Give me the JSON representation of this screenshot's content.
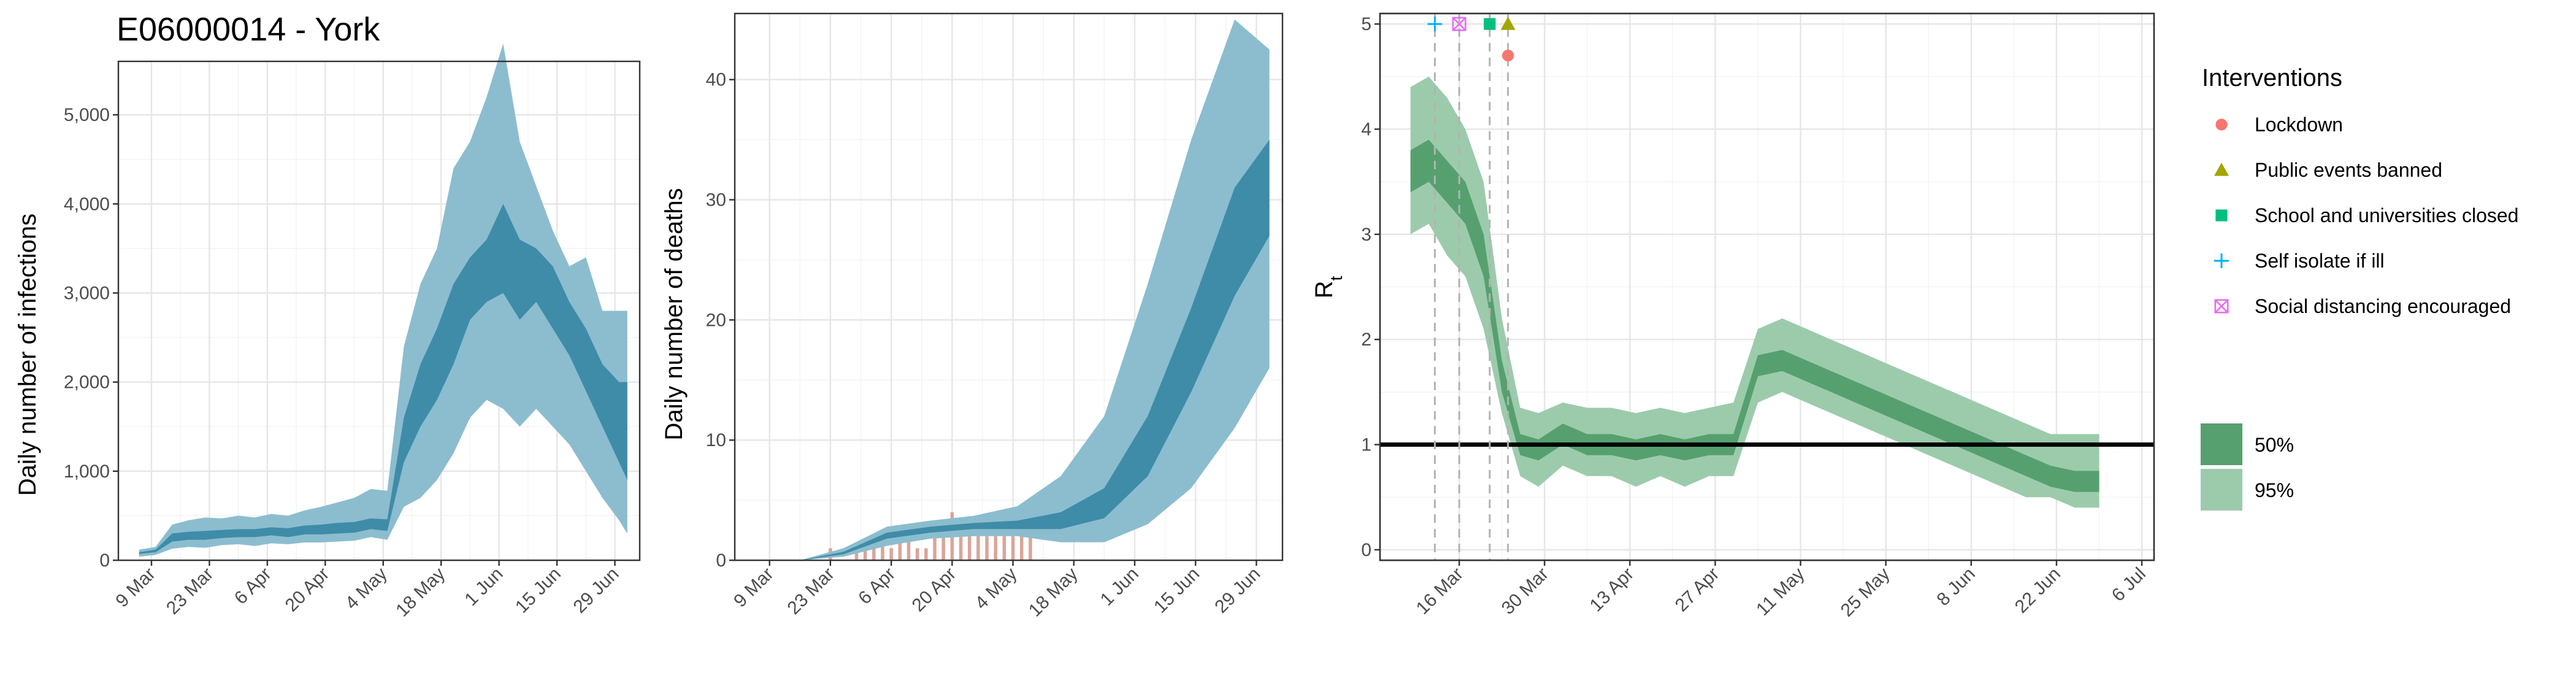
{
  "colors": {
    "infection_95": "#8bbdcf",
    "infection_50": "#3f8ca8",
    "death_bar": "#d9a59a",
    "rt_95": "#9ccbab",
    "rt_50": "#56a06f",
    "lockdown": "#F8766D",
    "events": "#A3A500",
    "schools": "#00BF7D",
    "self_isolate": "#00B0F6",
    "distancing": "#E76BF3"
  },
  "chart_data": [
    {
      "type": "area",
      "title": "E06000014 - York",
      "xlabel": "",
      "ylabel": "Daily number of infections",
      "x_ticks": [
        "9 Mar",
        "23 Mar",
        "6 Apr",
        "20 Apr",
        "4 May",
        "18 May",
        "1 Jun",
        "15 Jun",
        "29 Jun"
      ],
      "y_ticks": [
        "0",
        "1,000",
        "2,000",
        "3,000",
        "4,000",
        "5,000"
      ],
      "ylim": [
        0,
        5600
      ],
      "grid": true,
      "x": [
        "2020-03-06",
        "2020-03-10",
        "2020-03-14",
        "2020-03-18",
        "2020-03-22",
        "2020-03-26",
        "2020-03-30",
        "2020-04-03",
        "2020-04-07",
        "2020-04-11",
        "2020-04-15",
        "2020-04-19",
        "2020-04-23",
        "2020-04-27",
        "2020-05-01",
        "2020-05-05",
        "2020-05-09",
        "2020-05-13",
        "2020-05-17",
        "2020-05-21",
        "2020-05-25",
        "2020-05-29",
        "2020-06-02",
        "2020-06-06",
        "2020-06-10",
        "2020-06-14",
        "2020-06-18",
        "2020-06-22",
        "2020-06-26",
        "2020-06-30",
        "2020-07-02"
      ],
      "series": [
        {
          "values_low95": [
            40,
            60,
            130,
            150,
            140,
            170,
            180,
            160,
            190,
            180,
            200,
            200,
            210,
            220,
            260,
            230,
            600,
            700,
            900,
            1200,
            1600,
            1800,
            1700,
            1500,
            1700,
            1500,
            1300,
            1000,
            700,
            450,
            300
          ],
          "values_low50": [
            70,
            90,
            210,
            230,
            230,
            250,
            260,
            260,
            280,
            260,
            290,
            290,
            300,
            310,
            350,
            330,
            1100,
            1500,
            1800,
            2200,
            2700,
            2900,
            3000,
            2700,
            2900,
            2600,
            2300,
            1900,
            1500,
            1100,
            900
          ],
          "values_high50": [
            90,
            120,
            300,
            320,
            330,
            340,
            350,
            350,
            370,
            360,
            390,
            400,
            420,
            430,
            470,
            460,
            1600,
            2200,
            2600,
            3100,
            3400,
            3600,
            4000,
            3600,
            3500,
            3300,
            2900,
            2600,
            2200,
            2000,
            2000
          ],
          "values_high95": [
            120,
            150,
            400,
            450,
            480,
            470,
            500,
            480,
            520,
            500,
            560,
            600,
            650,
            700,
            800,
            780,
            2400,
            3100,
            3500,
            4400,
            4700,
            5200,
            5800,
            4700,
            4200,
            3700,
            3300,
            3400,
            2800,
            2800,
            2800
          ]
        }
      ]
    },
    {
      "type": "bar",
      "title": "",
      "xlabel": "",
      "ylabel": "Daily number of deaths",
      "x_ticks": [
        "9 Mar",
        "23 Mar",
        "6 Apr",
        "20 Apr",
        "4 May",
        "18 May",
        "1 Jun",
        "15 Jun",
        "29 Jun"
      ],
      "y_ticks": [
        "0",
        "10",
        "20",
        "30",
        "40"
      ],
      "ylim": [
        0,
        45.5
      ],
      "grid": true,
      "bars": {
        "x": [
          "2020-03-23",
          "2020-03-29",
          "2020-03-31",
          "2020-04-02",
          "2020-04-04",
          "2020-04-06",
          "2020-04-08",
          "2020-04-10",
          "2020-04-12",
          "2020-04-14",
          "2020-04-16",
          "2020-04-18",
          "2020-04-20",
          "2020-04-22",
          "2020-04-24",
          "2020-04-26",
          "2020-04-28",
          "2020-04-30",
          "2020-05-02",
          "2020-05-04",
          "2020-05-06",
          "2020-05-08"
        ],
        "values": [
          1,
          1,
          1,
          2,
          2,
          1,
          2,
          2,
          1,
          1,
          3,
          2,
          4,
          3,
          2,
          3,
          2,
          2,
          3,
          2,
          2,
          3
        ]
      },
      "x": [
        "2020-03-06",
        "2020-03-16",
        "2020-03-26",
        "2020-04-05",
        "2020-04-15",
        "2020-04-25",
        "2020-05-05",
        "2020-05-15",
        "2020-05-25",
        "2020-06-04",
        "2020-06-14",
        "2020-06-24",
        "2020-07-02"
      ],
      "series": [
        {
          "values_low95": [
            0,
            0,
            0.3,
            1.2,
            1.8,
            2.0,
            2.0,
            1.5,
            1.5,
            3.0,
            6.0,
            11.0,
            16.0
          ],
          "values_low50": [
            0,
            0,
            0.5,
            1.8,
            2.3,
            2.6,
            2.6,
            2.6,
            3.5,
            7.0,
            14.0,
            22.0,
            27.0
          ],
          "values_high50": [
            0,
            0,
            0.7,
            2.3,
            2.8,
            3.1,
            3.3,
            4.0,
            6.0,
            12.0,
            21.0,
            31.0,
            35.0
          ],
          "values_high95": [
            0,
            0,
            1.0,
            2.8,
            3.3,
            3.7,
            4.5,
            7.0,
            12.0,
            23.0,
            35.0,
            45.0,
            42.5
          ]
        }
      ]
    },
    {
      "type": "area",
      "title": "",
      "xlabel": "",
      "ylabel": "Rt",
      "x_ticks": [
        "16 Mar",
        "30 Mar",
        "13 Apr",
        "27 Apr",
        "11 May",
        "25 May",
        "8 Jun",
        "22 Jun",
        "6 Jul"
      ],
      "y_ticks": [
        "0",
        "1",
        "2",
        "3",
        "4",
        "5"
      ],
      "ylim": [
        -0.1,
        5.1
      ],
      "grid": true,
      "reference_line": 1,
      "x": [
        "2020-03-08",
        "2020-03-11",
        "2020-03-14",
        "2020-03-17",
        "2020-03-20",
        "2020-03-23",
        "2020-03-26",
        "2020-03-29",
        "2020-04-02",
        "2020-04-06",
        "2020-04-10",
        "2020-04-14",
        "2020-04-18",
        "2020-04-22",
        "2020-04-26",
        "2020-04-30",
        "2020-05-04",
        "2020-05-08",
        "2020-05-12",
        "2020-05-16",
        "2020-05-20",
        "2020-05-24",
        "2020-05-28",
        "2020-06-01",
        "2020-06-05",
        "2020-06-09",
        "2020-06-13",
        "2020-06-17",
        "2020-06-21",
        "2020-06-25",
        "2020-06-29"
      ],
      "series": [
        {
          "values_low95": [
            3.0,
            3.1,
            2.8,
            2.6,
            2.1,
            1.3,
            0.7,
            0.6,
            0.8,
            0.7,
            0.7,
            0.6,
            0.7,
            0.6,
            0.7,
            0.7,
            1.4,
            1.5,
            1.4,
            1.3,
            1.2,
            1.1,
            1.0,
            0.9,
            0.8,
            0.7,
            0.6,
            0.5,
            0.5,
            0.4,
            0.4
          ],
          "values_low50": [
            3.4,
            3.5,
            3.3,
            3.1,
            2.6,
            1.5,
            0.9,
            0.85,
            1.0,
            0.9,
            0.9,
            0.85,
            0.9,
            0.85,
            0.9,
            0.9,
            1.65,
            1.7,
            1.6,
            1.5,
            1.4,
            1.3,
            1.2,
            1.1,
            1.0,
            0.9,
            0.8,
            0.7,
            0.6,
            0.55,
            0.55
          ],
          "values_high50": [
            3.8,
            3.9,
            3.7,
            3.5,
            3.0,
            1.8,
            1.1,
            1.05,
            1.2,
            1.1,
            1.1,
            1.05,
            1.1,
            1.05,
            1.1,
            1.1,
            1.85,
            1.9,
            1.8,
            1.7,
            1.6,
            1.5,
            1.4,
            1.3,
            1.2,
            1.1,
            1.0,
            0.9,
            0.8,
            0.75,
            0.75
          ],
          "values_high95": [
            4.4,
            4.5,
            4.3,
            4.0,
            3.5,
            2.2,
            1.35,
            1.3,
            1.4,
            1.35,
            1.35,
            1.3,
            1.35,
            1.3,
            1.35,
            1.4,
            2.1,
            2.2,
            2.1,
            2.0,
            1.9,
            1.8,
            1.7,
            1.6,
            1.5,
            1.4,
            1.3,
            1.2,
            1.1,
            1.1,
            1.1
          ]
        }
      ],
      "interventions": [
        {
          "name": "Self isolate if ill",
          "date": "2020-03-12",
          "y": 5.0,
          "shape": "plus",
          "color_key": "self_isolate"
        },
        {
          "name": "Social distancing encouraged",
          "date": "2020-03-16",
          "y": 5.0,
          "shape": "boxx",
          "color_key": "distancing"
        },
        {
          "name": "School and universities closed",
          "date": "2020-03-21",
          "y": 5.0,
          "shape": "square",
          "color_key": "schools"
        },
        {
          "name": "Public events banned",
          "date": "2020-03-24",
          "y": 5.0,
          "shape": "triangle",
          "color_key": "events"
        },
        {
          "name": "Lockdown",
          "date": "2020-03-24",
          "y": 4.7,
          "shape": "circle",
          "color_key": "lockdown"
        }
      ]
    }
  ],
  "legend": {
    "interventions_title": "Interventions",
    "interventions": [
      {
        "label": "Lockdown",
        "shape": "circle",
        "color_key": "lockdown"
      },
      {
        "label": "Public events banned",
        "shape": "triangle",
        "color_key": "events"
      },
      {
        "label": "School and universities closed",
        "shape": "square",
        "color_key": "schools"
      },
      {
        "label": "Self isolate if ill",
        "shape": "plus",
        "color_key": "self_isolate"
      },
      {
        "label": "Social distancing encouraged",
        "shape": "boxx",
        "color_key": "distancing"
      }
    ],
    "intervals": [
      {
        "label": "50%",
        "color_key": "rt_50"
      },
      {
        "label": "95%",
        "color_key": "rt_95"
      }
    ]
  }
}
